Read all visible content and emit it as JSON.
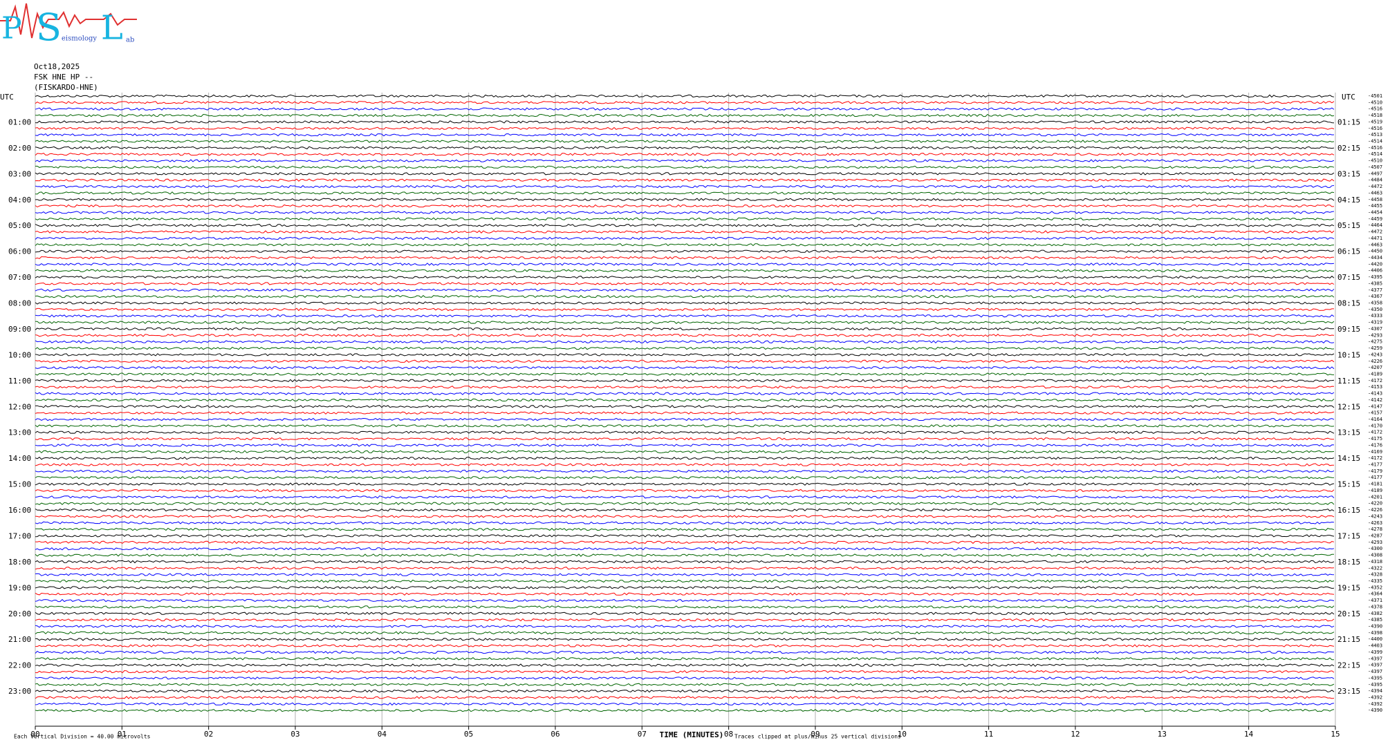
{
  "logo": {
    "letters": [
      "P",
      "S",
      "L"
    ],
    "words": [
      "eismology",
      "ab"
    ]
  },
  "header": {
    "date": "Oct18,2025",
    "station": "FSK HNE HP --",
    "site": "(FISKARDO-HNE)"
  },
  "chart_data": {
    "type": "helicorder",
    "utc_label": "UTC",
    "left_labels": [
      "01:00",
      "02:00",
      "03:00",
      "04:00",
      "05:00",
      "06:00",
      "07:00",
      "08:00",
      "09:00",
      "10:00",
      "11:00",
      "12:00",
      "13:00",
      "14:00",
      "15:00",
      "16:00",
      "17:00",
      "18:00",
      "19:00",
      "20:00",
      "21:00",
      "22:00",
      "23:00"
    ],
    "right_labels": [
      "01:15",
      "02:15",
      "03:15",
      "04:15",
      "05:15",
      "06:15",
      "07:15",
      "08:15",
      "09:15",
      "10:15",
      "11:15",
      "12:15",
      "13:15",
      "14:15",
      "15:15",
      "16:15",
      "17:15",
      "18:15",
      "19:15",
      "20:15",
      "21:15",
      "22:15",
      "23:15"
    ],
    "trace_offsets": [
      -4501,
      -4510,
      -4516,
      -4518,
      -4519,
      -4516,
      -4513,
      -4514,
      -4516,
      -4514,
      -4510,
      -4507,
      -4497,
      -4484,
      -4472,
      -4463,
      -4458,
      -4455,
      -4454,
      -4459,
      -4464,
      -4472,
      -4471,
      -4463,
      -4450,
      -4434,
      -4420,
      -4406,
      -4395,
      -4385,
      -4377,
      -4367,
      -4358,
      -4350,
      -4333,
      -4319,
      -4307,
      -4293,
      -4275,
      -4259,
      -4243,
      -4226,
      -4207,
      -4189,
      -4172,
      -4153,
      -4143,
      -4142,
      -4147,
      -4157,
      -4164,
      -4170,
      -4172,
      -4175,
      -4176,
      -4169,
      -4172,
      -4177,
      -4179,
      -4177,
      -4181,
      -4189,
      -4201,
      -4220,
      -4226,
      -4243,
      -4263,
      -4278,
      -4287,
      -4293,
      -4300,
      -4308,
      -4318,
      -4322,
      -4328,
      -4335,
      -4352,
      -4364,
      -4371,
      -4378,
      -4382,
      -4385,
      -4390,
      -4398,
      -4400,
      -4403,
      -4399,
      -4397,
      -4397,
      -4397,
      -4395,
      -4395,
      -4394,
      -4392,
      -4392,
      -4390
    ],
    "trace_colors": [
      "#000000",
      "#ff0000",
      "#0000ff",
      "#006400"
    ],
    "xlim": [
      0,
      15
    ],
    "xticks": [
      {
        "value": 0,
        "label": "00"
      },
      {
        "value": 1,
        "label": "01"
      },
      {
        "value": 2,
        "label": "02"
      },
      {
        "value": 3,
        "label": "03"
      },
      {
        "value": 4,
        "label": "04"
      },
      {
        "value": 5,
        "label": "05"
      },
      {
        "value": 6,
        "label": "06"
      },
      {
        "value": 7,
        "label": "07"
      },
      {
        "value": 8,
        "label": "08"
      },
      {
        "value": 9,
        "label": "09"
      },
      {
        "value": 10,
        "label": "10"
      },
      {
        "value": 11,
        "label": "11"
      },
      {
        "value": 12,
        "label": "12"
      },
      {
        "value": 13,
        "label": "13"
      },
      {
        "value": 14,
        "label": "14"
      },
      {
        "value": 15,
        "label": "15"
      }
    ],
    "grid": true,
    "x_label": "TIME (MINUTES)",
    "scale_note": "Each Vertical Division =   40.00 microvolts",
    "clip_note": "Traces clipped at plus/minus 25 vertical divisions"
  }
}
